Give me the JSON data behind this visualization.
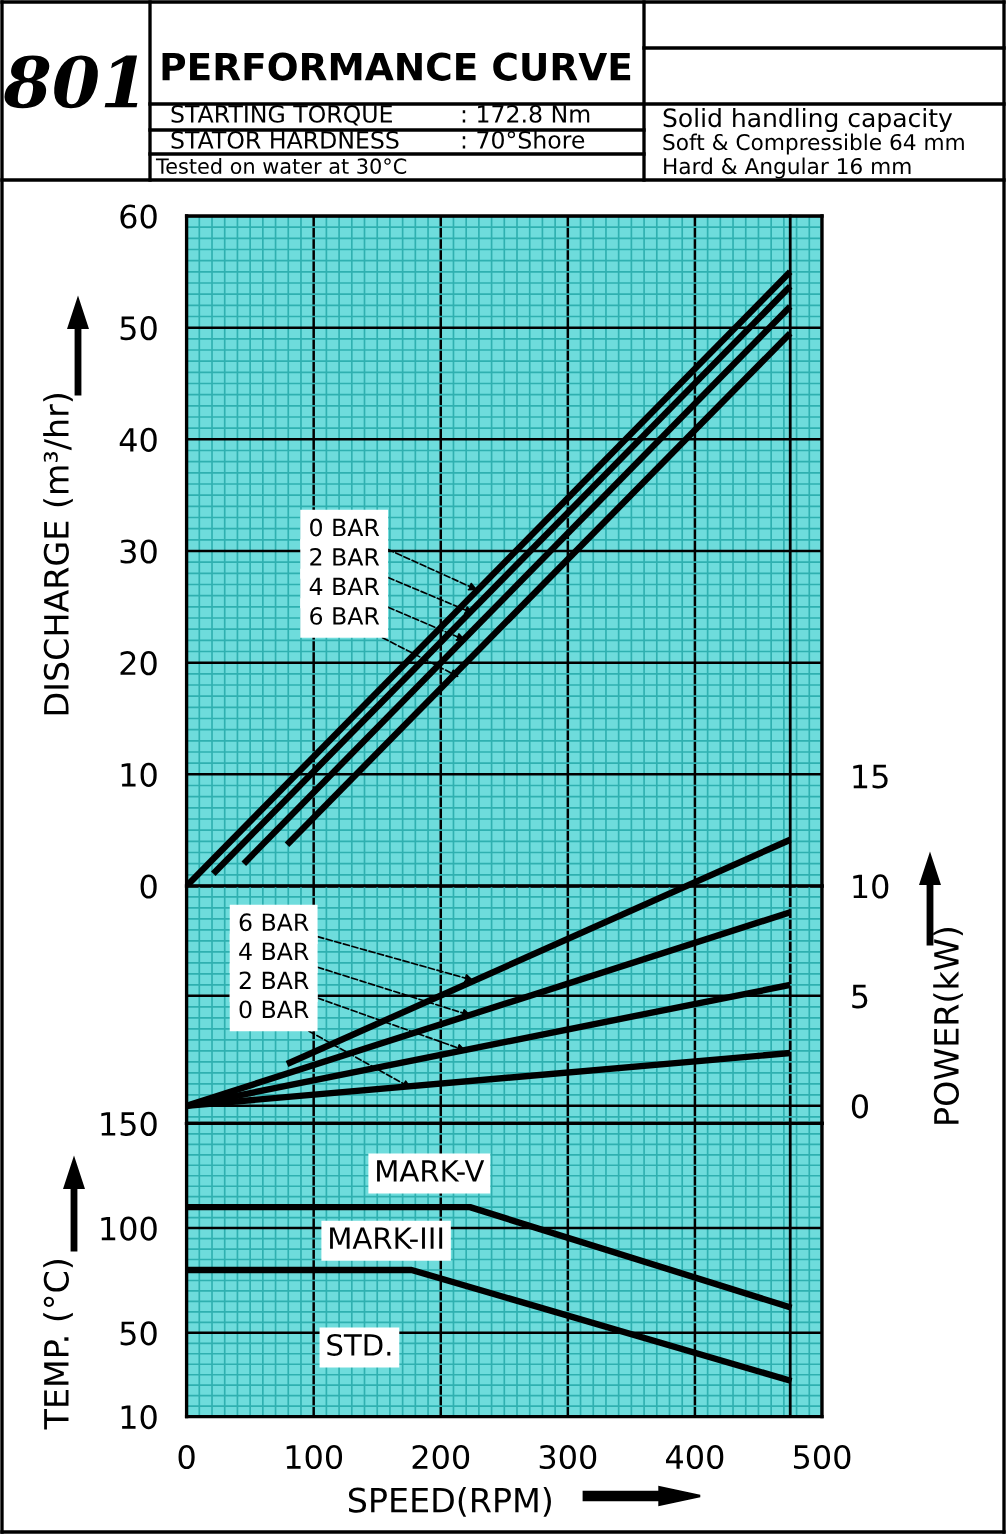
{
  "chart_data": [
    {
      "type": "line",
      "title": "PERFORMANCE CURVE",
      "ylabel": "DISCHARGE (m³/hr)",
      "xlim": [
        0,
        500
      ],
      "xticks": [
        0,
        {
          "value": 10,
          "label": null
        },
        {
          "value": 20,
          "label": null
        },
        {
          "value": 30,
          "label": null
        },
        {
          "value": 40,
          "label": null
        },
        {
          "value": 50,
          "label": null
        },
        {
          "value": 60,
          "label": null
        },
        {
          "value": 70,
          "label": null
        },
        {
          "value": 80,
          "label": null
        },
        {
          "value": 90,
          "label": null
        },
        100,
        {
          "value": 110,
          "label": null
        },
        {
          "value": 120,
          "label": null
        },
        {
          "value": 130,
          "label": null
        },
        {
          "value": 140,
          "label": null
        },
        {
          "value": 150,
          "label": null
        },
        {
          "value": 160,
          "label": null
        },
        {
          "value": 170,
          "label": null
        },
        {
          "value": 180,
          "label": null
        },
        {
          "value": 190,
          "label": null
        },
        200,
        {
          "value": 210,
          "label": null
        },
        {
          "value": 220,
          "label": null
        },
        {
          "value": 230,
          "label": null
        },
        {
          "value": 240,
          "label": null
        },
        {
          "value": 250,
          "label": null
        },
        {
          "value": 260,
          "label": null
        },
        {
          "value": 270,
          "label": null
        },
        {
          "value": 280,
          "label": null
        },
        {
          "value": 290,
          "label": null
        },
        300,
        {
          "value": 310,
          "label": null
        },
        {
          "value": 320,
          "label": null
        },
        {
          "value": 330,
          "label": null
        },
        {
          "value": 340,
          "label": null
        },
        {
          "value": 350,
          "label": null
        },
        {
          "value": 360,
          "label": null
        },
        {
          "value": 370,
          "label": null
        },
        {
          "value": 380,
          "label": null
        },
        {
          "value": 390,
          "label": null
        },
        400,
        {
          "value": 410,
          "label": null
        },
        {
          "value": 420,
          "label": null
        },
        {
          "value": 430,
          "label": null
        },
        {
          "value": 440,
          "label": null
        },
        {
          "value": 450,
          "label": null
        },
        {
          "value": 460,
          "label": null
        },
        {
          "value": 470,
          "label": null
        },
        {
          "value": 480,
          "label": null
        },
        {
          "value": 490,
          "label": null
        },
        500
      ],
      "ylim": [
        0,
        60
      ],
      "yticks": [
        0,
        {
          "value": 1,
          "label": null
        },
        {
          "value": 2,
          "label": null
        },
        {
          "value": 3,
          "label": null
        },
        {
          "value": 4,
          "label": null
        },
        {
          "value": 5,
          "label": null
        },
        {
          "value": 6,
          "label": null
        },
        {
          "value": 7,
          "label": null
        },
        {
          "value": 8,
          "label": null
        },
        {
          "value": 9,
          "label": null
        },
        10,
        {
          "value": 11,
          "label": null
        },
        {
          "value": 12,
          "label": null
        },
        {
          "value": 13,
          "label": null
        },
        {
          "value": 14,
          "label": null
        },
        {
          "value": 15,
          "label": null
        },
        {
          "value": 16,
          "label": null
        },
        {
          "value": 17,
          "label": null
        },
        {
          "value": 18,
          "label": null
        },
        {
          "value": 19,
          "label": null
        },
        20,
        {
          "value": 21,
          "label": null
        },
        {
          "value": 22,
          "label": null
        },
        {
          "value": 23,
          "label": null
        },
        {
          "value": 24,
          "label": null
        },
        {
          "value": 25,
          "label": null
        },
        {
          "value": 26,
          "label": null
        },
        {
          "value": 27,
          "label": null
        },
        {
          "value": 28,
          "label": null
        },
        {
          "value": 29,
          "label": null
        },
        30,
        {
          "value": 31,
          "label": null
        },
        {
          "value": 32,
          "label": null
        },
        {
          "value": 33,
          "label": null
        },
        {
          "value": 34,
          "label": null
        },
        {
          "value": 35,
          "label": null
        },
        {
          "value": 36,
          "label": null
        },
        {
          "value": 37,
          "label": null
        },
        {
          "value": 38,
          "label": null
        },
        {
          "value": 39,
          "label": null
        },
        40,
        {
          "value": 41,
          "label": null
        },
        {
          "value": 42,
          "label": null
        },
        {
          "value": 43,
          "label": null
        },
        {
          "value": 44,
          "label": null
        },
        {
          "value": 45,
          "label": null
        },
        {
          "value": 46,
          "label": null
        },
        {
          "value": 47,
          "label": null
        },
        {
          "value": 48,
          "label": null
        },
        {
          "value": 49,
          "label": null
        },
        50,
        {
          "value": 51,
          "label": null
        },
        {
          "value": 52,
          "label": null
        },
        {
          "value": 53,
          "label": null
        },
        {
          "value": 54,
          "label": null
        },
        {
          "value": 55,
          "label": null
        },
        {
          "value": 56,
          "label": null
        },
        {
          "value": 57,
          "label": null
        },
        {
          "value": 58,
          "label": null
        },
        {
          "value": 59,
          "label": null
        },
        60
      ],
      "tick_labels": "y",
      "grid": true,
      "line_style": "solid",
      "marker": "none",
      "series": [
        {
          "color": "#000000",
          "x": [
            0,
            475
          ],
          "values": [
            0,
            55
          ]
        },
        {
          "color": "#000000",
          "x": [
            21,
            475
          ],
          "values": [
            1.1,
            53.7
          ]
        },
        {
          "color": "#000000",
          "x": [
            45,
            475
          ],
          "values": [
            2.0,
            51.9
          ]
        },
        {
          "color": "#000000",
          "x": [
            79,
            475
          ],
          "values": [
            3.7,
            49.5
          ]
        }
      ],
      "ref_lines": [
        {
          "axis": "x",
          "value": 475,
          "label": null,
          "color": "#000000"
        }
      ],
      "annotations": [
        "801",
        "STARTING TORQUE",
        ": 172.8 Nm",
        "STATOR HARDNESS",
        ": 70°Shore",
        "Tested on water at 30°C",
        "Solid handling capacity",
        "Soft & Compressible 64 mm",
        "Hard & Angular 16 mm",
        {
          "text": "0 BAR",
          "x": 229,
          "y": 26.5
        },
        {
          "text": "2 BAR",
          "x": 226,
          "y": 24.4
        },
        {
          "text": "4 BAR",
          "x": 219.5,
          "y": 22.0
        },
        {
          "text": "6 BAR",
          "x": 214.6,
          "y": 18.7
        }
      ]
    },
    {
      "type": "line",
      "ylabel": "POWER(kW)",
      "xlim": [
        0,
        500
      ],
      "xticks": [
        0,
        {
          "value": 10,
          "label": null
        },
        {
          "value": 20,
          "label": null
        },
        {
          "value": 30,
          "label": null
        },
        {
          "value": 40,
          "label": null
        },
        {
          "value": 50,
          "label": null
        },
        {
          "value": 60,
          "label": null
        },
        {
          "value": 70,
          "label": null
        },
        {
          "value": 80,
          "label": null
        },
        {
          "value": 90,
          "label": null
        },
        100,
        {
          "value": 110,
          "label": null
        },
        {
          "value": 120,
          "label": null
        },
        {
          "value": 130,
          "label": null
        },
        {
          "value": 140,
          "label": null
        },
        {
          "value": 150,
          "label": null
        },
        {
          "value": 160,
          "label": null
        },
        {
          "value": 170,
          "label": null
        },
        {
          "value": 180,
          "label": null
        },
        {
          "value": 190,
          "label": null
        },
        200,
        {
          "value": 210,
          "label": null
        },
        {
          "value": 220,
          "label": null
        },
        {
          "value": 230,
          "label": null
        },
        {
          "value": 240,
          "label": null
        },
        {
          "value": 250,
          "label": null
        },
        {
          "value": 260,
          "label": null
        },
        {
          "value": 270,
          "label": null
        },
        {
          "value": 280,
          "label": null
        },
        {
          "value": 290,
          "label": null
        },
        300,
        {
          "value": 310,
          "label": null
        },
        {
          "value": 320,
          "label": null
        },
        {
          "value": 330,
          "label": null
        },
        {
          "value": 340,
          "label": null
        },
        {
          "value": 350,
          "label": null
        },
        {
          "value": 360,
          "label": null
        },
        {
          "value": 370,
          "label": null
        },
        {
          "value": 380,
          "label": null
        },
        {
          "value": 390,
          "label": null
        },
        400,
        {
          "value": 410,
          "label": null
        },
        {
          "value": 420,
          "label": null
        },
        {
          "value": 430,
          "label": null
        },
        {
          "value": 440,
          "label": null
        },
        {
          "value": 450,
          "label": null
        },
        {
          "value": 460,
          "label": null
        },
        {
          "value": 470,
          "label": null
        },
        {
          "value": 480,
          "label": null
        },
        {
          "value": 490,
          "label": null
        },
        500
      ],
      "ylim": [
        -0.8,
        15
      ],
      "yticks": [
        {
          "value": -0.5,
          "label": null
        },
        0,
        {
          "value": 0.5,
          "label": null
        },
        {
          "value": 1,
          "label": null
        },
        {
          "value": 1.5,
          "label": null
        },
        {
          "value": 2,
          "label": null
        },
        {
          "value": 2.5,
          "label": null
        },
        {
          "value": 3,
          "label": null
        },
        {
          "value": 3.5,
          "label": null
        },
        {
          "value": 4,
          "label": null
        },
        {
          "value": 4.5,
          "label": null
        },
        5,
        {
          "value": 5.5,
          "label": null
        },
        {
          "value": 6,
          "label": null
        },
        {
          "value": 6.5,
          "label": null
        },
        {
          "value": 7,
          "label": null
        },
        {
          "value": 7.5,
          "label": null
        },
        {
          "value": 8,
          "label": null
        },
        {
          "value": 8.5,
          "label": null
        },
        {
          "value": 9,
          "label": null
        },
        {
          "value": 9.5,
          "label": null
        },
        10,
        15
      ],
      "tick_labels": "y",
      "grid": true,
      "line_style": "solid",
      "marker": "none",
      "series": [
        {
          "color": "#000000",
          "x": [
            0,
            475
          ],
          "values": [
            0,
            2.4
          ]
        },
        {
          "color": "#000000",
          "x": [
            0,
            475
          ],
          "values": [
            0,
            5.5
          ]
        },
        {
          "color": "#000000",
          "x": [
            0,
            475
          ],
          "values": [
            0,
            8.8
          ]
        },
        {
          "color": "#000000",
          "x": [
            79,
            475
          ],
          "values": [
            1.9,
            12.1
          ]
        }
      ],
      "annotations": [
        {
          "text": "6 BAR",
          "x": 226,
          "y": 5.7
        },
        {
          "text": "4 BAR",
          "x": 224,
          "y": 4.1
        },
        {
          "text": "2 BAR",
          "x": 220,
          "y": 2.5
        },
        {
          "text": "0 BAR",
          "x": 177,
          "y": 0.8
        }
      ]
    },
    {
      "type": "line",
      "xlabel": "SPEED(RPM)",
      "ylabel": "TEMP. (°C)",
      "xlim": [
        0,
        500
      ],
      "xticks": [
        0,
        {
          "value": 10,
          "label": null
        },
        {
          "value": 20,
          "label": null
        },
        {
          "value": 30,
          "label": null
        },
        {
          "value": 40,
          "label": null
        },
        {
          "value": 50,
          "label": null
        },
        {
          "value": 60,
          "label": null
        },
        {
          "value": 70,
          "label": null
        },
        {
          "value": 80,
          "label": null
        },
        {
          "value": 90,
          "label": null
        },
        100,
        {
          "value": 110,
          "label": null
        },
        {
          "value": 120,
          "label": null
        },
        {
          "value": 130,
          "label": null
        },
        {
          "value": 140,
          "label": null
        },
        {
          "value": 150,
          "label": null
        },
        {
          "value": 160,
          "label": null
        },
        {
          "value": 170,
          "label": null
        },
        {
          "value": 180,
          "label": null
        },
        {
          "value": 190,
          "label": null
        },
        200,
        {
          "value": 210,
          "label": null
        },
        {
          "value": 220,
          "label": null
        },
        {
          "value": 230,
          "label": null
        },
        {
          "value": 240,
          "label": null
        },
        {
          "value": 250,
          "label": null
        },
        {
          "value": 260,
          "label": null
        },
        {
          "value": 270,
          "label": null
        },
        {
          "value": 280,
          "label": null
        },
        {
          "value": 290,
          "label": null
        },
        300,
        {
          "value": 310,
          "label": null
        },
        {
          "value": 320,
          "label": null
        },
        {
          "value": 330,
          "label": null
        },
        {
          "value": 340,
          "label": null
        },
        {
          "value": 350,
          "label": null
        },
        {
          "value": 360,
          "label": null
        },
        {
          "value": 370,
          "label": null
        },
        {
          "value": 380,
          "label": null
        },
        {
          "value": 390,
          "label": null
        },
        400,
        {
          "value": 410,
          "label": null
        },
        {
          "value": 420,
          "label": null
        },
        {
          "value": 430,
          "label": null
        },
        {
          "value": 440,
          "label": null
        },
        {
          "value": 450,
          "label": null
        },
        {
          "value": 460,
          "label": null
        },
        {
          "value": 470,
          "label": null
        },
        {
          "value": 480,
          "label": null
        },
        {
          "value": 490,
          "label": null
        },
        500
      ],
      "ylim": [
        10,
        150
      ],
      "yticks": [
        10,
        {
          "value": 15,
          "label": null
        },
        {
          "value": 20,
          "label": null
        },
        {
          "value": 25,
          "label": null
        },
        {
          "value": 30,
          "label": null
        },
        {
          "value": 35,
          "label": null
        },
        {
          "value": 40,
          "label": null
        },
        {
          "value": 45,
          "label": null
        },
        50,
        {
          "value": 55,
          "label": null
        },
        {
          "value": 60,
          "label": null
        },
        {
          "value": 65,
          "label": null
        },
        {
          "value": 70,
          "label": null
        },
        {
          "value": 75,
          "label": null
        },
        {
          "value": 80,
          "label": null
        },
        {
          "value": 85,
          "label": null
        },
        {
          "value": 90,
          "label": null
        },
        {
          "value": 95,
          "label": null
        },
        100,
        {
          "value": 105,
          "label": null
        },
        {
          "value": 110,
          "label": null
        },
        {
          "value": 115,
          "label": null
        },
        {
          "value": 120,
          "label": null
        },
        {
          "value": 125,
          "label": null
        },
        {
          "value": 130,
          "label": null
        },
        {
          "value": 135,
          "label": null
        },
        {
          "value": 140,
          "label": null
        },
        {
          "value": 145,
          "label": null
        },
        150
      ],
      "grid": true,
      "line_style": "solid",
      "marker": "none",
      "series": [
        {
          "color": "#000000",
          "x": [
            0,
            223,
            476
          ],
          "values": [
            110,
            110,
            62
          ]
        },
        {
          "color": "#000000",
          "x": [
            0,
            177,
            476
          ],
          "values": [
            80,
            80,
            27
          ]
        }
      ],
      "ref_lines": [
        {
          "axis": "x",
          "value": 475,
          "label": null,
          "color": "#000000"
        }
      ],
      "annotations": [
        "MARK-V",
        "MARK-III",
        {
          "text": "STD.",
          "x": 136,
          "y": 43
        }
      ]
    }
  ]
}
